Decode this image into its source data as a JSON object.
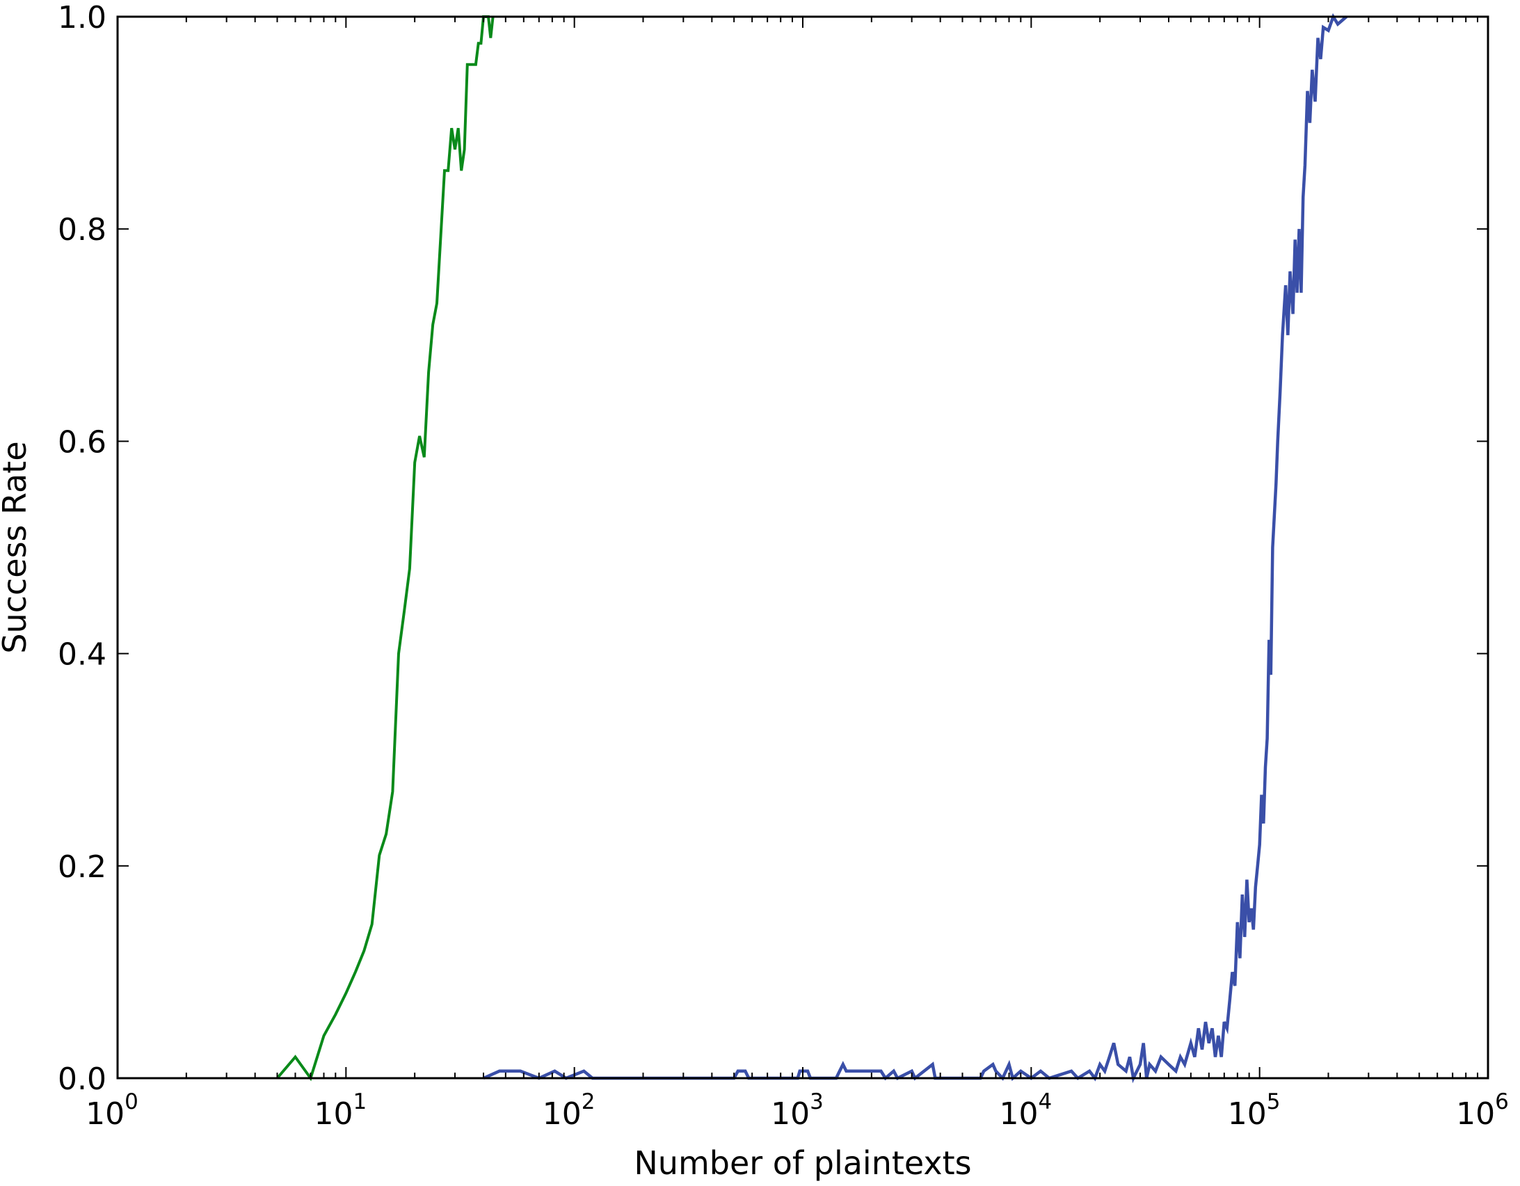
{
  "chart_data": {
    "type": "line",
    "title": "",
    "xlabel": "Number of plaintexts",
    "ylabel": "Success Rate",
    "xscale": "log",
    "xlim": [
      1,
      1000000
    ],
    "ylim": [
      0.0,
      1.0
    ],
    "grid": false,
    "legend": "none",
    "x_tick_labels": [
      {
        "base": "10",
        "exp": "0"
      },
      {
        "base": "10",
        "exp": "1"
      },
      {
        "base": "10",
        "exp": "2"
      },
      {
        "base": "10",
        "exp": "3"
      },
      {
        "base": "10",
        "exp": "4"
      },
      {
        "base": "10",
        "exp": "5"
      },
      {
        "base": "10",
        "exp": "6"
      }
    ],
    "y_tick_labels": [
      "0.0",
      "0.2",
      "0.4",
      "0.6",
      "0.8",
      "1.0"
    ],
    "series": [
      {
        "color": "#0a8a1a",
        "points": [
          [
            5,
            0
          ],
          [
            6,
            0.02
          ],
          [
            7,
            0
          ],
          [
            8,
            0.04
          ],
          [
            9,
            0.06
          ],
          [
            10,
            0.08
          ],
          [
            11,
            0.1
          ],
          [
            12,
            0.12
          ],
          [
            13,
            0.145
          ],
          [
            14,
            0.21
          ],
          [
            15,
            0.23
          ],
          [
            16,
            0.27
          ],
          [
            17,
            0.4
          ],
          [
            18,
            0.44
          ],
          [
            19,
            0.48
          ],
          [
            20,
            0.58
          ],
          [
            21,
            0.605
          ],
          [
            22,
            0.585
          ],
          [
            23,
            0.665
          ],
          [
            24,
            0.71
          ],
          [
            25,
            0.73
          ],
          [
            27,
            0.855
          ],
          [
            28,
            0.855
          ],
          [
            29,
            0.895
          ],
          [
            30,
            0.875
          ],
          [
            31,
            0.895
          ],
          [
            32,
            0.855
          ],
          [
            33,
            0.875
          ],
          [
            34,
            0.955
          ],
          [
            37,
            0.955
          ],
          [
            38,
            0.975
          ],
          [
            39,
            0.975
          ],
          [
            40,
            1.0
          ],
          [
            42,
            1.0
          ],
          [
            43,
            0.98
          ],
          [
            44,
            1.0
          ]
        ]
      },
      {
        "color": "#3a4fa8",
        "points": [
          [
            40,
            0
          ],
          [
            47,
            0.0067
          ],
          [
            58,
            0.0067
          ],
          [
            70,
            0
          ],
          [
            82,
            0.0067
          ],
          [
            92,
            0
          ],
          [
            110,
            0.0067
          ],
          [
            120,
            0
          ],
          [
            500,
            0
          ],
          [
            520,
            0.0067
          ],
          [
            560,
            0.0067
          ],
          [
            580,
            0
          ],
          [
            950,
            0
          ],
          [
            970,
            0.0067
          ],
          [
            1050,
            0.0067
          ],
          [
            1080,
            0
          ],
          [
            1400,
            0
          ],
          [
            1450,
            0.0067
          ],
          [
            1500,
            0.013
          ],
          [
            1550,
            0.0067
          ],
          [
            2200,
            0.0067
          ],
          [
            2300,
            0
          ],
          [
            2500,
            0.0067
          ],
          [
            2600,
            0
          ],
          [
            3000,
            0.0067
          ],
          [
            3100,
            0
          ],
          [
            3700,
            0.013
          ],
          [
            3800,
            0
          ],
          [
            6000,
            0
          ],
          [
            6200,
            0.0067
          ],
          [
            6800,
            0.013
          ],
          [
            7000,
            0.0067
          ],
          [
            7500,
            0
          ],
          [
            8000,
            0.013
          ],
          [
            8300,
            0
          ],
          [
            9000,
            0.0067
          ],
          [
            10000,
            0
          ],
          [
            11000,
            0.0067
          ],
          [
            12000,
            0
          ],
          [
            15000,
            0.0067
          ],
          [
            16000,
            0
          ],
          [
            18000,
            0.0067
          ],
          [
            19000,
            0
          ],
          [
            20000,
            0.013
          ],
          [
            21000,
            0.0067
          ],
          [
            22000,
            0.02
          ],
          [
            23000,
            0.033
          ],
          [
            24000,
            0.013
          ],
          [
            26000,
            0.0067
          ],
          [
            27000,
            0.02
          ],
          [
            28000,
            0
          ],
          [
            30000,
            0.013
          ],
          [
            31000,
            0.033
          ],
          [
            32000,
            0
          ],
          [
            33000,
            0.013
          ],
          [
            35000,
            0.0067
          ],
          [
            37000,
            0.02
          ],
          [
            40000,
            0.013
          ],
          [
            43000,
            0.0067
          ],
          [
            45000,
            0.02
          ],
          [
            47000,
            0.013
          ],
          [
            50000,
            0.033
          ],
          [
            52000,
            0.02
          ],
          [
            54000,
            0.047
          ],
          [
            56000,
            0.027
          ],
          [
            58000,
            0.053
          ],
          [
            60000,
            0.033
          ],
          [
            62000,
            0.047
          ],
          [
            64000,
            0.02
          ],
          [
            66000,
            0.04
          ],
          [
            68000,
            0.02
          ],
          [
            70000,
            0.053
          ],
          [
            72000,
            0.047
          ],
          [
            74000,
            0.073
          ],
          [
            76000,
            0.1
          ],
          [
            78000,
            0.087
          ],
          [
            80000,
            0.147
          ],
          [
            82000,
            0.113
          ],
          [
            84000,
            0.173
          ],
          [
            86000,
            0.133
          ],
          [
            88000,
            0.187
          ],
          [
            90000,
            0.147
          ],
          [
            92000,
            0.16
          ],
          [
            94000,
            0.14
          ],
          [
            96000,
            0.18
          ],
          [
            98000,
            0.2
          ],
          [
            100000,
            0.22
          ],
          [
            102000,
            0.267
          ],
          [
            104000,
            0.24
          ],
          [
            106000,
            0.293
          ],
          [
            108000,
            0.32
          ],
          [
            110000,
            0.413
          ],
          [
            112000,
            0.38
          ],
          [
            114000,
            0.5
          ],
          [
            118000,
            0.56
          ],
          [
            120000,
            0.6
          ],
          [
            123000,
            0.647
          ],
          [
            126000,
            0.7
          ],
          [
            130000,
            0.747
          ],
          [
            133000,
            0.7
          ],
          [
            136000,
            0.76
          ],
          [
            140000,
            0.72
          ],
          [
            143000,
            0.79
          ],
          [
            146000,
            0.74
          ],
          [
            149000,
            0.8
          ],
          [
            152000,
            0.74
          ],
          [
            155000,
            0.83
          ],
          [
            158000,
            0.86
          ],
          [
            162000,
            0.93
          ],
          [
            166000,
            0.9
          ],
          [
            170000,
            0.95
          ],
          [
            175000,
            0.92
          ],
          [
            180000,
            0.98
          ],
          [
            185000,
            0.96
          ],
          [
            190000,
            0.99
          ],
          [
            200000,
            0.987
          ],
          [
            210000,
            1.0
          ],
          [
            220000,
            0.993
          ],
          [
            240000,
            1.0
          ]
        ]
      }
    ]
  }
}
